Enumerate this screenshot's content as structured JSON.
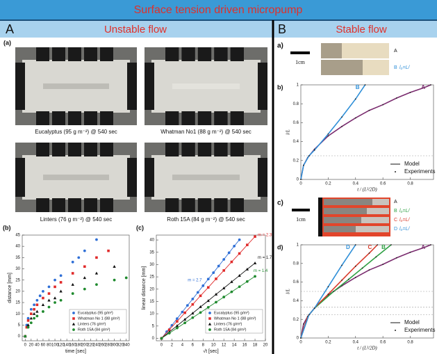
{
  "header": {
    "title": "Surface tension driven micropump"
  },
  "panel_a": {
    "letter": "A",
    "title": "Unstable flow",
    "label": "(a)",
    "photos": [
      "Eucalyptus (95 g m⁻²) @ 540 sec",
      "Whatman No1 (88 g m⁻²) @ 540 sec",
      "Linters (76 g m⁻²) @ 540 sec",
      "Roth 15A (84 g m⁻²) @ 540 sec"
    ]
  },
  "panel_b": {
    "letter": "B",
    "title": "Stable flow",
    "label_a": "a)",
    "label_c": "c)",
    "scale": "1cm",
    "strips_a": [
      {
        "letter": "A"
      },
      {
        "letter": "B",
        "note": "l₀=L/"
      }
    ],
    "strips_c": [
      {
        "letter": "A"
      },
      {
        "letter": "B",
        "note": "l₀=L/"
      },
      {
        "letter": "C",
        "note": "l₀=L/"
      },
      {
        "letter": "D",
        "note": "l₀=L/"
      }
    ]
  },
  "chart_data": [
    {
      "type": "scatter",
      "label": "(b)",
      "xlabel": "time [sec]",
      "ylabel": "distance [mm]",
      "xlim": [
        -10,
        350
      ],
      "ylim": [
        -2,
        45
      ],
      "xticks": [
        0,
        20,
        40,
        60,
        80,
        100,
        120,
        140,
        160,
        180,
        200,
        220,
        240,
        260,
        280,
        300,
        320,
        340
      ],
      "yticks": [
        0,
        5,
        10,
        15,
        20,
        25,
        30,
        35,
        40,
        45
      ],
      "series": [
        {
          "name": "Eucalyptus (95 g/m²)",
          "color": "#2f6fd6",
          "marker": "circle",
          "x": [
            0,
            5,
            10,
            20,
            30,
            40,
            50,
            60,
            80,
            100,
            120,
            160,
            180,
            200,
            240
          ],
          "values": [
            0,
            5,
            8,
            12,
            14,
            16,
            18,
            20,
            22,
            25,
            27,
            33,
            35,
            38,
            43
          ]
        },
        {
          "name": "Whatman No 1 (88 g/m²)",
          "color": "#e02a2a",
          "marker": "square",
          "x": [
            0,
            5,
            10,
            20,
            30,
            40,
            60,
            80,
            100,
            120,
            160,
            200,
            240,
            280
          ],
          "values": [
            0,
            4,
            7,
            10,
            12,
            14,
            17,
            19,
            22,
            24,
            28,
            31,
            35,
            38
          ]
        },
        {
          "name": "Linters (76 g/m²)",
          "color": "#111111",
          "marker": "triangle",
          "x": [
            0,
            10,
            20,
            30,
            40,
            60,
            80,
            100,
            120,
            160,
            200,
            240,
            300
          ],
          "values": [
            0,
            5,
            8,
            10,
            11,
            14,
            16,
            17,
            20,
            23,
            26,
            28,
            31
          ]
        },
        {
          "name": "Roth 15A (84 g/m²)",
          "color": "#1f8a2e",
          "marker": "circle",
          "x": [
            0,
            10,
            20,
            30,
            40,
            60,
            80,
            100,
            120,
            160,
            200,
            240,
            300,
            340
          ],
          "values": [
            0,
            4,
            6,
            8,
            9,
            11,
            13,
            15,
            16,
            19,
            21,
            23,
            25,
            26
          ]
        }
      ]
    },
    {
      "type": "line",
      "label": "(c)",
      "xlabel": "√t [sec]",
      "ylabel": "linear distance [mm]",
      "xlim": [
        -1,
        20
      ],
      "ylim": [
        -1,
        42
      ],
      "xticks": [
        0,
        2,
        4,
        6,
        8,
        10,
        12,
        14,
        16,
        18,
        20
      ],
      "yticks": [
        0,
        5,
        10,
        15,
        20,
        25,
        30,
        35,
        40
      ],
      "series": [
        {
          "name": "Eucalyptus (95 g/m²)",
          "slope_label": "m = 2.7",
          "color": "#2f6fd6",
          "marker": "circle",
          "x": [
            0,
            1,
            2,
            3,
            4,
            5,
            6,
            7,
            8,
            9,
            10,
            11,
            12,
            13,
            14,
            15
          ],
          "values": [
            0,
            2.7,
            5.3,
            8.0,
            10.7,
            13.4,
            16.0,
            18.7,
            21.4,
            24.1,
            26.7,
            29.4,
            32.1,
            34.8,
            37.5,
            40.1
          ]
        },
        {
          "name": "Whatman No 1 (88 g/m²)",
          "slope_label": "m = 2.3",
          "color": "#e02a2a",
          "marker": "square",
          "x": [
            0,
            1.5,
            3,
            4.5,
            6,
            7.5,
            9,
            10.5,
            12,
            13.5,
            15,
            16.5,
            18
          ],
          "values": [
            0,
            3.5,
            6.9,
            10.4,
            13.8,
            17.3,
            20.7,
            24.2,
            27.6,
            31.1,
            34.5,
            38.0,
            41.4
          ]
        },
        {
          "name": "Linters (76 g/m²)",
          "slope_label": "m = 1.7",
          "color": "#111111",
          "marker": "triangle",
          "x": [
            0,
            1.5,
            3,
            4.5,
            6,
            7.5,
            9,
            10.5,
            12,
            13.5,
            15,
            16.5,
            18
          ],
          "values": [
            0,
            2.6,
            5.1,
            7.7,
            10.2,
            12.8,
            15.3,
            17.9,
            20.4,
            23.0,
            25.5,
            28.1,
            30.6
          ]
        },
        {
          "name": "Roth 15A (84 g/m²)",
          "slope_label": "m = 1.4",
          "color": "#1f8a2e",
          "marker": "circle",
          "x": [
            0,
            1.5,
            3,
            4.5,
            6,
            7.5,
            9,
            10.5,
            12,
            13.5,
            15,
            16.5,
            18
          ],
          "values": [
            0,
            2.1,
            4.2,
            6.3,
            8.4,
            10.5,
            12.6,
            14.7,
            16.8,
            18.9,
            21.0,
            23.1,
            25.2
          ]
        }
      ]
    },
    {
      "type": "curve",
      "label": "b)",
      "xlabel": "t / (L²/2D)",
      "ylabel": "l/L",
      "xlim": [
        0,
        0.97
      ],
      "ylim": [
        0,
        1
      ],
      "xticks": [
        0,
        0.2,
        0.4,
        0.6,
        0.8
      ],
      "yticks": [
        0,
        0.2,
        0.4,
        0.6,
        0.8,
        1
      ],
      "hlines": [
        0.25
      ],
      "legend_labels": [
        "Model",
        "Experiments"
      ],
      "series": [
        {
          "name": "A",
          "color": "#7a2b6e",
          "x": [
            0,
            0.02,
            0.05,
            0.1,
            0.2,
            0.3,
            0.4,
            0.5,
            0.6,
            0.7,
            0.8,
            0.9,
            0.95
          ],
          "values": [
            0,
            0.15,
            0.23,
            0.32,
            0.46,
            0.56,
            0.65,
            0.73,
            0.79,
            0.86,
            0.92,
            0.97,
            1.0
          ]
        },
        {
          "name": "B",
          "color": "#2f8fd8",
          "x": [
            0,
            0.02,
            0.06,
            0.1,
            0.2,
            0.3,
            0.4,
            0.47
          ],
          "values": [
            0,
            0.15,
            0.25,
            0.31,
            0.48,
            0.66,
            0.85,
            1.0
          ]
        }
      ]
    },
    {
      "type": "curve",
      "label": "d)",
      "xlabel": "t / (L²/2D)",
      "ylabel": "l/L",
      "xlim": [
        0,
        0.97
      ],
      "ylim": [
        0,
        1
      ],
      "xticks": [
        0,
        0.2,
        0.4,
        0.6,
        0.8
      ],
      "yticks": [
        0,
        0.2,
        0.4,
        0.6,
        0.8,
        1
      ],
      "hlines": [
        0.5,
        0.33,
        0.25
      ],
      "legend_labels": [
        "Model",
        "Experiments"
      ],
      "series": [
        {
          "name": "A",
          "color": "#7a2b6e",
          "x": [
            0,
            0.02,
            0.05,
            0.1,
            0.2,
            0.3,
            0.4,
            0.5,
            0.6,
            0.7,
            0.8,
            0.9,
            0.95
          ],
          "values": [
            0,
            0.15,
            0.23,
            0.32,
            0.46,
            0.56,
            0.65,
            0.73,
            0.79,
            0.86,
            0.92,
            0.97,
            1.0
          ]
        },
        {
          "name": "B",
          "color": "#2ea043",
          "x": [
            0,
            0.05,
            0.1,
            0.24,
            0.35,
            0.45,
            0.55,
            0.66
          ],
          "values": [
            0,
            0.23,
            0.32,
            0.5,
            0.63,
            0.75,
            0.87,
            1.0
          ]
        },
        {
          "name": "C",
          "color": "#d83a2a",
          "x": [
            0,
            0.05,
            0.11,
            0.2,
            0.3,
            0.4,
            0.5,
            0.56
          ],
          "values": [
            0,
            0.23,
            0.34,
            0.47,
            0.62,
            0.77,
            0.91,
            1.0
          ]
        },
        {
          "name": "D",
          "color": "#2f8fd8",
          "x": [
            0,
            0.06,
            0.1,
            0.2,
            0.3,
            0.4
          ],
          "values": [
            0,
            0.25,
            0.32,
            0.55,
            0.78,
            1.0
          ]
        }
      ]
    }
  ]
}
